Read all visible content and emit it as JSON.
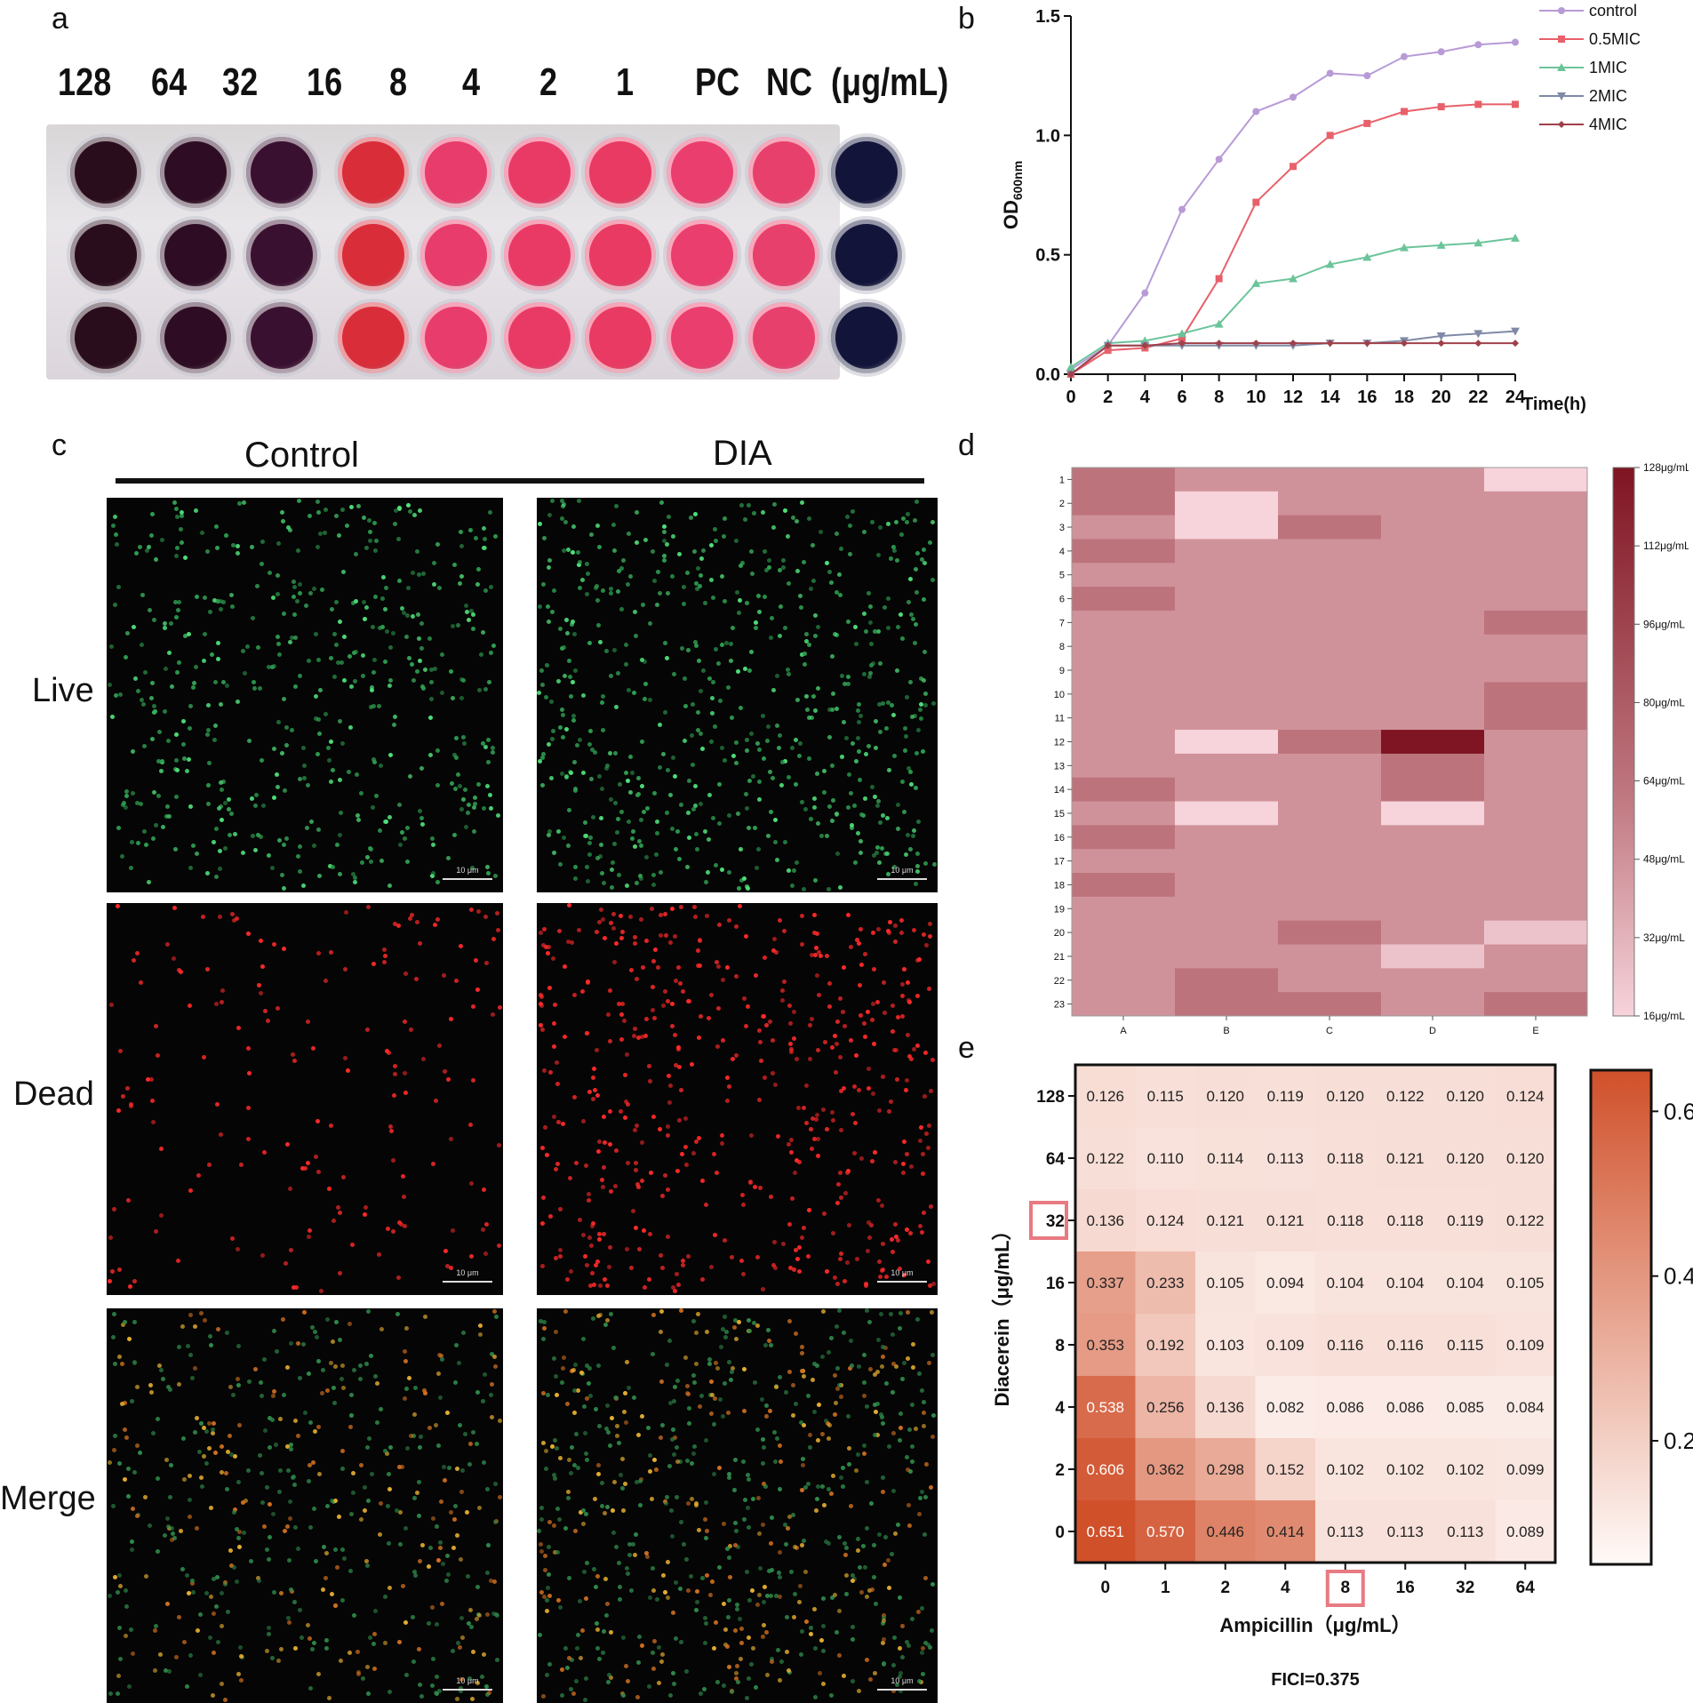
{
  "panels": {
    "a": "a",
    "b": "b",
    "c": "c",
    "d": "d",
    "e": "e"
  },
  "panel_a": {
    "concentration_labels": [
      "128",
      "64",
      "32",
      "16",
      "8",
      "4",
      "2",
      "1",
      "PC",
      "NC",
      "(μg/mL)"
    ],
    "well_colors": [
      "#2a0d1c",
      "#2e0d24",
      "#3a1030",
      "#d92d3a",
      "#e83c6c",
      "#e93a66",
      "#e83a62",
      "#ea3e6e",
      "#e8406c",
      "#12143a"
    ]
  },
  "chart_data": [
    {
      "type": "line",
      "x": [
        0,
        2,
        4,
        6,
        8,
        10,
        12,
        14,
        16,
        18,
        20,
        22,
        24
      ],
      "xlim": [
        0,
        24
      ],
      "ylim": [
        0,
        1.5
      ],
      "xticks": [
        "0",
        "2",
        "4",
        "6",
        "8",
        "10",
        "12",
        "14",
        "16",
        "18",
        "20",
        "22",
        "24"
      ],
      "yticks": [
        "0.0",
        "0.5",
        "1.0",
        "1.5"
      ],
      "xlabel": "Time(h)",
      "ylabel": "OD",
      "ylabel_sub": "600nm",
      "legend_position": "top-right",
      "series": [
        {
          "name": "control",
          "color": "#b89ad6",
          "marker": "circle",
          "values": [
            0.02,
            0.12,
            0.34,
            0.69,
            0.9,
            1.1,
            1.16,
            1.26,
            1.25,
            1.33,
            1.35,
            1.38,
            1.39
          ]
        },
        {
          "name": "0.5MIC",
          "color": "#e8606a",
          "marker": "square",
          "values": [
            0.0,
            0.1,
            0.11,
            0.15,
            0.4,
            0.72,
            0.87,
            1.0,
            1.05,
            1.1,
            1.12,
            1.13,
            1.13
          ]
        },
        {
          "name": "1MIC",
          "color": "#6cc49a",
          "marker": "triangle-up",
          "values": [
            0.03,
            0.13,
            0.14,
            0.17,
            0.21,
            0.38,
            0.4,
            0.46,
            0.49,
            0.53,
            0.54,
            0.55,
            0.57
          ]
        },
        {
          "name": "2MIC",
          "color": "#7f8aa6",
          "marker": "triangle-down",
          "values": [
            0.0,
            0.12,
            0.12,
            0.12,
            0.12,
            0.12,
            0.12,
            0.13,
            0.13,
            0.14,
            0.16,
            0.17,
            0.18
          ]
        },
        {
          "name": "4MIC",
          "color": "#a0404a",
          "marker": "diamond",
          "values": [
            0.0,
            0.12,
            0.12,
            0.13,
            0.13,
            0.13,
            0.13,
            0.13,
            0.13,
            0.13,
            0.13,
            0.13,
            0.13
          ]
        }
      ]
    },
    {
      "type": "heatmap",
      "rows": [
        "1",
        "2",
        "3",
        "4",
        "5",
        "6",
        "7",
        "8",
        "9",
        "10",
        "11",
        "12",
        "13",
        "14",
        "15",
        "16",
        "17",
        "18",
        "19",
        "20",
        "21",
        "22",
        "23"
      ],
      "columns": [
        "A",
        "B",
        "C",
        "D",
        "E"
      ],
      "values": [
        [
          64,
          48,
          48,
          48,
          16
        ],
        [
          64,
          16,
          48,
          48,
          48
        ],
        [
          48,
          16,
          64,
          48,
          48
        ],
        [
          64,
          48,
          48,
          48,
          48
        ],
        [
          48,
          48,
          48,
          48,
          48
        ],
        [
          64,
          48,
          48,
          48,
          48
        ],
        [
          48,
          48,
          48,
          48,
          64
        ],
        [
          48,
          48,
          48,
          48,
          48
        ],
        [
          48,
          48,
          48,
          48,
          48
        ],
        [
          48,
          48,
          48,
          48,
          64
        ],
        [
          48,
          48,
          48,
          48,
          64
        ],
        [
          48,
          16,
          64,
          128,
          48
        ],
        [
          48,
          48,
          48,
          64,
          48
        ],
        [
          64,
          48,
          48,
          64,
          48
        ],
        [
          48,
          16,
          48,
          16,
          48
        ],
        [
          64,
          48,
          48,
          48,
          48
        ],
        [
          48,
          48,
          48,
          48,
          48
        ],
        [
          64,
          48,
          48,
          48,
          48
        ],
        [
          48,
          48,
          48,
          48,
          48
        ],
        [
          48,
          48,
          64,
          48,
          24
        ],
        [
          48,
          48,
          48,
          24,
          48
        ],
        [
          48,
          64,
          48,
          48,
          48
        ],
        [
          48,
          64,
          64,
          48,
          64
        ]
      ],
      "value_range": [
        16,
        128
      ],
      "colorbar_ticks": [
        "128μg/mL",
        "112μg/mL",
        "96μg/mL",
        "80μg/mL",
        "64μg/mL",
        "48μg/mL",
        "32μg/mL",
        "16μg/mL"
      ]
    },
    {
      "type": "heatmap",
      "rows": [
        "128",
        "64",
        "32",
        "16",
        "8",
        "4",
        "2",
        "0"
      ],
      "columns": [
        "0",
        "1",
        "2",
        "4",
        "8",
        "16",
        "32",
        "64"
      ],
      "values": [
        [
          "0.126",
          "0.115",
          "0.120",
          "0.119",
          "0.120",
          "0.122",
          "0.120",
          "0.124"
        ],
        [
          "0.122",
          "0.110",
          "0.114",
          "0.113",
          "0.118",
          "0.121",
          "0.120",
          "0.120"
        ],
        [
          "0.136",
          "0.124",
          "0.121",
          "0.121",
          "0.118",
          "0.118",
          "0.119",
          "0.122"
        ],
        [
          "0.337",
          "0.233",
          "0.105",
          "0.094",
          "0.104",
          "0.104",
          "0.104",
          "0.105"
        ],
        [
          "0.353",
          "0.192",
          "0.103",
          "0.109",
          "0.116",
          "0.116",
          "0.115",
          "0.109"
        ],
        [
          "0.538",
          "0.256",
          "0.136",
          "0.082",
          "0.086",
          "0.086",
          "0.085",
          "0.084"
        ],
        [
          "0.606",
          "0.362",
          "0.298",
          "0.152",
          "0.102",
          "0.102",
          "0.102",
          "0.099"
        ],
        [
          "0.651",
          "0.570",
          "0.446",
          "0.414",
          "0.113",
          "0.113",
          "0.113",
          "0.089"
        ]
      ],
      "xlabel": "Ampicillin（μg/mL）",
      "ylabel": "Diacerein（μg/mL）",
      "highlighted_row": "32",
      "highlighted_column": "8",
      "colorbar_range": [
        0.05,
        0.65
      ],
      "colorbar_ticks": [
        "0.6",
        "0.4",
        "0.2"
      ],
      "annotation": "FICI=0.375"
    }
  ],
  "panel_c": {
    "columns": [
      "Control",
      "DIA"
    ],
    "rows": [
      "Live",
      "Dead",
      "Merge"
    ],
    "scalebar": "10 μm",
    "colors": {
      "live": "#3fd06a",
      "dead": "#ff2a2a",
      "merge": "#e8b030"
    }
  },
  "colors": {
    "heatmap_d_low": "#f7d3db",
    "heatmap_d_high": "#7f1422",
    "heatmap_e_low": "#fffaf8",
    "heatmap_e_high": "#d0502a",
    "highlight": "#e87a82"
  }
}
